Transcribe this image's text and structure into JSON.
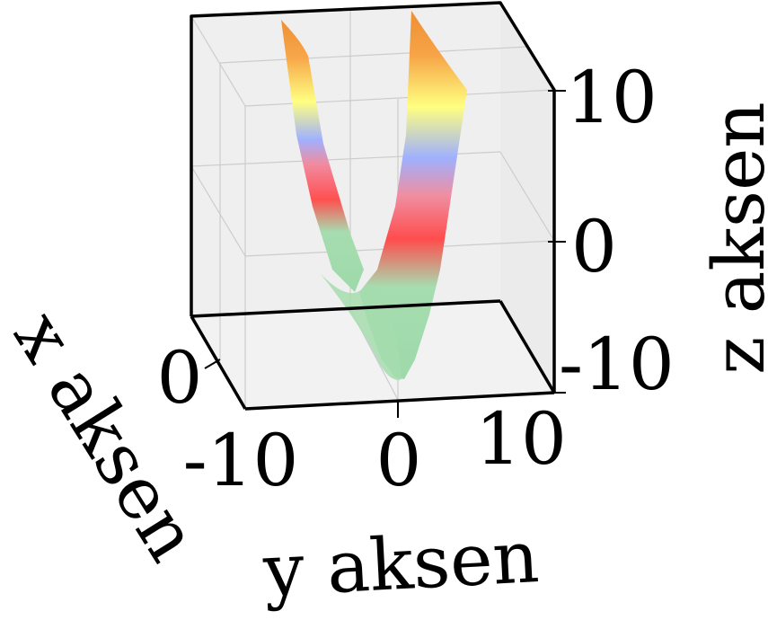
{
  "chart_data": {
    "type": "surface3d",
    "title": "",
    "xlabel": "x aksen",
    "ylabel": "y aksen",
    "zlabel": "z aksen",
    "x_ticks": [
      "0"
    ],
    "y_ticks": [
      "-10",
      "0",
      "10"
    ],
    "z_ticks": [
      "10",
      "0",
      "-10"
    ],
    "xlim": [
      -10,
      10
    ],
    "ylim": [
      -10,
      10
    ],
    "zlim": [
      -10,
      10
    ],
    "grid": true,
    "surface_description": "V-shaped (parabolic) surface opening upward, minimum near y = 0, z ≈ -10",
    "colormap": [
      "#a4dcae",
      "#ff4b4b",
      "#9fb0ff",
      "#ffff7a",
      "#f3923a"
    ]
  }
}
